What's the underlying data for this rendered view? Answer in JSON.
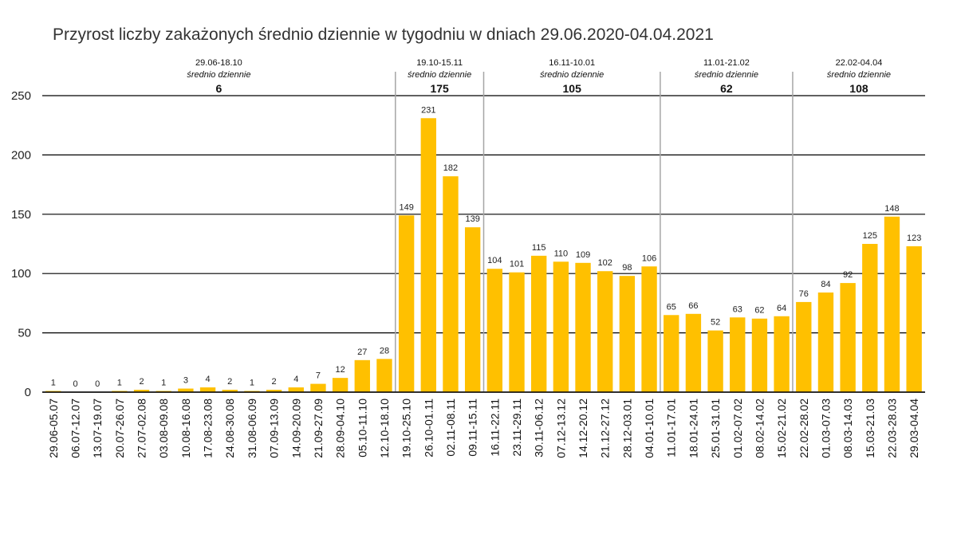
{
  "title": "Przyrost liczby zakażonych średnio dziennie w tygodniu w dniach 29.06.2020-04.04.2021",
  "colors": {
    "bar": "#FFC000",
    "grid": "#000000",
    "divider": "#A6A6A6",
    "text": "#222222"
  },
  "chart_data": {
    "type": "bar",
    "title": "Przyrost liczby zakażonych średnio dziennie w tygodniu w dniach 29.06.2020-04.04.2021",
    "categories": [
      "29.06-05.07",
      "06.07-12.07",
      "13.07-19.07",
      "20.07-26.07",
      "27.07-02.08",
      "03.08-09.08",
      "10.08-16.08",
      "17.08-23.08",
      "24.08-30.08",
      "31.08-06.09",
      "07.09-13.09",
      "14.09-20.09",
      "21.09-27.09",
      "28.09-04.10",
      "05.10-11.10",
      "12.10-18.10",
      "19.10-25.10",
      "26.10-01.11",
      "02.11-08.11",
      "09.11-15.11",
      "16.11-22.11",
      "23.11-29.11",
      "30.11-06.12",
      "07.12-13.12",
      "14.12-20.12",
      "21.12-27.12",
      "28.12-03.01",
      "04.01-10.01",
      "11.01-17.01",
      "18.01-24.01",
      "25.01-31.01",
      "01.02-07.02",
      "08.02-14.02",
      "15.02-21.02",
      "22.02-28.02",
      "01.03-07.03",
      "08.03-14.03",
      "15.03-21.03",
      "22.03-28.03",
      "29.03-04.04"
    ],
    "values": [
      1,
      0,
      0,
      1,
      2,
      1,
      3,
      4,
      2,
      1,
      2,
      4,
      7,
      12,
      27,
      28,
      149,
      231,
      182,
      139,
      104,
      101,
      115,
      110,
      109,
      102,
      98,
      106,
      65,
      66,
      52,
      63,
      62,
      64,
      76,
      84,
      92,
      125,
      148,
      123
    ],
    "ylim": [
      0,
      250
    ],
    "yticks": [
      0,
      50,
      100,
      150,
      200,
      250
    ],
    "grid": true,
    "periods": [
      {
        "range": "29.06-18.10",
        "subtitle": "średnio dziennie",
        "average": "6",
        "start_index": 0,
        "end_index": 15
      },
      {
        "range": "19.10-15.11",
        "subtitle": "średnio dziennie",
        "average": "175",
        "start_index": 16,
        "end_index": 19
      },
      {
        "range": "16.11-10.01",
        "subtitle": "średnio dziennie",
        "average": "105",
        "start_index": 20,
        "end_index": 27
      },
      {
        "range": "11.01-21.02",
        "subtitle": "średnio dziennie",
        "average": "62",
        "start_index": 28,
        "end_index": 33
      },
      {
        "range": "22.02-04.04",
        "subtitle": "średnio dziennie",
        "average": "108",
        "start_index": 34,
        "end_index": 39
      }
    ]
  }
}
